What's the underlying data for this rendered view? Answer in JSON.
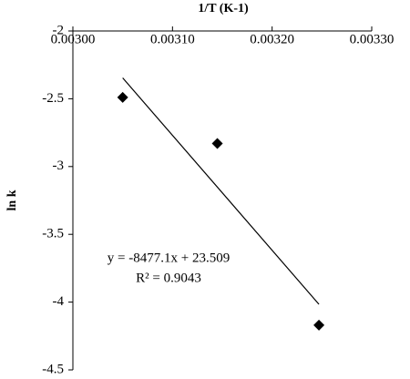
{
  "chart_data": {
    "type": "scatter",
    "title": "1/T (K-1)",
    "y_label": "ln k",
    "x": [
      0.00305,
      0.003145,
      0.003247
    ],
    "values": [
      -2.49,
      -2.83,
      -4.17
    ],
    "color": "#000000",
    "xlim": [
      0.003,
      0.0033
    ],
    "ylim": [
      -4.5,
      -2
    ],
    "xticks": [
      {
        "value": 0.003,
        "label": "0.00300"
      },
      {
        "value": 0.0031,
        "label": "0.00310"
      },
      {
        "value": 0.0032,
        "label": "0.00320"
      },
      {
        "value": 0.0033,
        "label": "0.00330"
      }
    ],
    "yticks": [
      -2,
      -2.5,
      -3,
      -3.5,
      -4,
      -4.5
    ],
    "trendline": {
      "slope": -8477.1,
      "intercept": 23.509
    },
    "annotations": [
      "y = -8477.1x + 23.509",
      "R² = 0.9043"
    ],
    "grid": false
  }
}
